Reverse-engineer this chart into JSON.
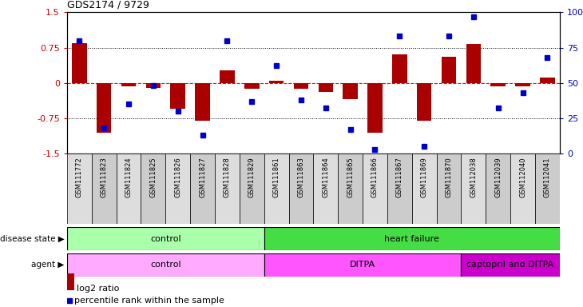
{
  "title": "GDS2174 / 9729",
  "samples": [
    "GSM111772",
    "GSM111823",
    "GSM111824",
    "GSM111825",
    "GSM111826",
    "GSM111827",
    "GSM111828",
    "GSM111829",
    "GSM111861",
    "GSM111863",
    "GSM111864",
    "GSM111865",
    "GSM111866",
    "GSM111867",
    "GSM111869",
    "GSM111870",
    "GSM112038",
    "GSM112039",
    "GSM112040",
    "GSM112041"
  ],
  "log2_ratio": [
    0.85,
    -1.05,
    -0.08,
    -0.1,
    -0.55,
    -0.8,
    0.27,
    -0.12,
    0.05,
    -0.12,
    -0.2,
    -0.35,
    -1.05,
    0.6,
    -0.8,
    0.55,
    0.82,
    -0.08,
    -0.08,
    0.12
  ],
  "percentile": [
    80,
    18,
    35,
    48,
    30,
    13,
    80,
    37,
    62,
    38,
    32,
    17,
    3,
    83,
    5,
    83,
    97,
    32,
    43,
    68
  ],
  "disease_state": [
    {
      "label": "control",
      "start": 0,
      "end": 8,
      "color": "#AAFFAA"
    },
    {
      "label": "heart failure",
      "start": 8,
      "end": 20,
      "color": "#44DD44"
    }
  ],
  "agent": [
    {
      "label": "control",
      "start": 0,
      "end": 8,
      "color": "#FFAAFF"
    },
    {
      "label": "DITPA",
      "start": 8,
      "end": 16,
      "color": "#FF55FF"
    },
    {
      "label": "captopril and DITPA",
      "start": 16,
      "end": 20,
      "color": "#CC00CC"
    }
  ],
  "bar_color": "#AA0000",
  "dot_color": "#0000CC",
  "ylim_left": [
    -1.5,
    1.5
  ],
  "ylim_right": [
    0,
    100
  ],
  "yticks_left": [
    -1.5,
    -0.75,
    0.0,
    0.75,
    1.5
  ],
  "ytick_labels_left": [
    "-1.5",
    "-0.75",
    "0",
    "0.75",
    "1.5"
  ],
  "yticks_right": [
    0,
    25,
    50,
    75,
    100
  ],
  "ytick_labels_right": [
    "0",
    "25",
    "50",
    "75",
    "100%"
  ],
  "hlines_dotted": [
    0.75,
    -0.75
  ],
  "hline_dashed": 0.0
}
